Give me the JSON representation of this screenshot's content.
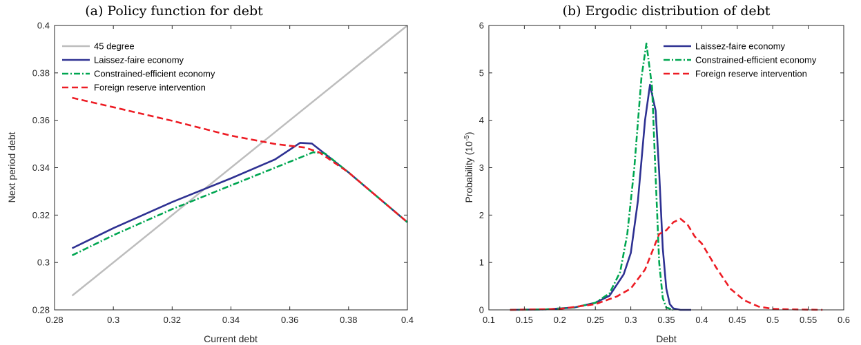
{
  "chart_data": [
    {
      "type": "line",
      "title": "(a) Policy function for debt",
      "xlabel": "Current debt",
      "ylabel": "Next period debt",
      "xlim": [
        0.28,
        0.4
      ],
      "ylim": [
        0.28,
        0.4
      ],
      "xticks": [
        "0.28",
        "0.3",
        "0.32",
        "0.34",
        "0.36",
        "0.38",
        "0.4"
      ],
      "yticks": [
        "0.28",
        "0.3",
        "0.32",
        "0.34",
        "0.36",
        "0.38",
        "0.4"
      ],
      "legend_position": "top-left",
      "grid": false,
      "series": [
        {
          "name": "45 degree",
          "color": "#bdbdbd",
          "dash": "solid",
          "x": [
            0.286,
            0.4
          ],
          "y": [
            0.286,
            0.4
          ]
        },
        {
          "name": "Laissez-faire economy",
          "color": "#2e3192",
          "dash": "solid",
          "x": [
            0.286,
            0.3,
            0.32,
            0.34,
            0.355,
            0.3635,
            0.3675,
            0.38,
            0.4
          ],
          "y": [
            0.306,
            0.3145,
            0.3255,
            0.3355,
            0.3435,
            0.3505,
            0.3502,
            0.338,
            0.317
          ]
        },
        {
          "name": "Constrained-efficient economy",
          "color": "#00a651",
          "dash": "dashdot",
          "x": [
            0.286,
            0.3,
            0.32,
            0.34,
            0.36,
            0.368,
            0.372,
            0.38,
            0.4
          ],
          "y": [
            0.303,
            0.3115,
            0.3225,
            0.3325,
            0.3425,
            0.3465,
            0.346,
            0.338,
            0.317
          ]
        },
        {
          "name": "Foreign reserve intervention",
          "color": "#ed1c24",
          "dash": "dashed",
          "x": [
            0.286,
            0.3,
            0.32,
            0.34,
            0.355,
            0.365,
            0.37,
            0.38,
            0.4
          ],
          "y": [
            0.3695,
            0.3655,
            0.3598,
            0.3535,
            0.35,
            0.3485,
            0.3465,
            0.338,
            0.317
          ]
        }
      ]
    },
    {
      "type": "line",
      "title": "(b) Ergodic distribution of debt",
      "xlabel": "Debt",
      "ylabel": "Probability (10",
      "ylabel_exponent": "-5",
      "ylabel_end": ")",
      "xlim": [
        0.1,
        0.6
      ],
      "ylim": [
        0,
        6
      ],
      "xticks": [
        "0.1",
        "0.15",
        "0.2",
        "0.25",
        "0.3",
        "0.35",
        "0.4",
        "0.45",
        "0.5",
        "0.55",
        "0.6"
      ],
      "yticks": [
        "0",
        "1",
        "2",
        "3",
        "4",
        "5",
        "6"
      ],
      "legend_position": "top-right",
      "grid": false,
      "series": [
        {
          "name": "Laissez-faire economy",
          "color": "#2e3192",
          "dash": "solid",
          "x": [
            0.13,
            0.18,
            0.22,
            0.25,
            0.27,
            0.29,
            0.3,
            0.31,
            0.32,
            0.327,
            0.335,
            0.34,
            0.345,
            0.35,
            0.355,
            0.36,
            0.37,
            0.385
          ],
          "y": [
            0,
            0.01,
            0.05,
            0.15,
            0.3,
            0.75,
            1.2,
            2.3,
            4.0,
            4.75,
            4.2,
            2.9,
            1.3,
            0.45,
            0.12,
            0.03,
            0,
            0
          ]
        },
        {
          "name": "Constrained-efficient economy",
          "color": "#00a651",
          "dash": "dashdot",
          "x": [
            0.13,
            0.18,
            0.22,
            0.25,
            0.27,
            0.285,
            0.295,
            0.305,
            0.315,
            0.322,
            0.33,
            0.335,
            0.34,
            0.345,
            0.35,
            0.36
          ],
          "y": [
            0,
            0.01,
            0.05,
            0.15,
            0.35,
            0.8,
            1.6,
            3.0,
            4.9,
            5.62,
            4.7,
            2.8,
            1.0,
            0.25,
            0.05,
            0
          ]
        },
        {
          "name": "Foreign reserve intervention",
          "color": "#ed1c24",
          "dash": "dashed",
          "x": [
            0.13,
            0.2,
            0.25,
            0.28,
            0.3,
            0.32,
            0.34,
            0.35,
            0.36,
            0.37,
            0.38,
            0.39,
            0.4,
            0.42,
            0.44,
            0.46,
            0.48,
            0.5,
            0.53,
            0.57
          ],
          "y": [
            0,
            0.02,
            0.12,
            0.28,
            0.45,
            0.85,
            1.6,
            1.68,
            1.85,
            1.92,
            1.8,
            1.55,
            1.4,
            0.9,
            0.45,
            0.2,
            0.07,
            0.02,
            0.01,
            0
          ]
        }
      ]
    }
  ]
}
